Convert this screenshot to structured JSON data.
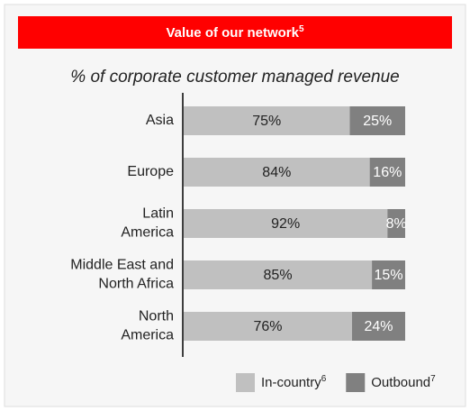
{
  "chart_data": {
    "type": "stacked-bar-horizontal",
    "title": "Value of our network",
    "title_sup": "5",
    "subtitle": "% of corporate customer managed revenue",
    "categories": [
      [
        "Asia"
      ],
      [
        "Europe"
      ],
      [
        "Latin",
        "America"
      ],
      [
        "Middle East and",
        "North Africa"
      ],
      [
        "North",
        "America"
      ]
    ],
    "series": [
      {
        "name": "In-country",
        "name_sup": "6",
        "color": "#c0c0c0",
        "text_color": "#222222",
        "values": [
          75,
          84,
          92,
          85,
          76
        ],
        "value_labels": [
          "75%",
          "84%",
          "92%",
          "85%",
          "76%"
        ]
      },
      {
        "name": "Outbound",
        "name_sup": "7",
        "color": "#808080",
        "text_color": "#ffffff",
        "values": [
          25,
          16,
          8,
          15,
          24
        ],
        "value_labels": [
          "25%",
          "16%",
          "8%",
          "15%",
          "24%"
        ]
      }
    ],
    "xlim": [
      0,
      100
    ]
  }
}
